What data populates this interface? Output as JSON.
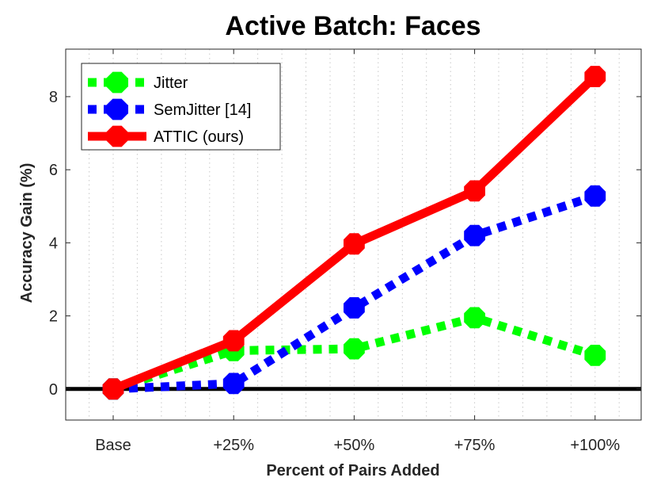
{
  "chart_data": {
    "type": "line",
    "title": "Active Batch: Faces",
    "xlabel": "Percent of Pairs Added",
    "ylabel": "Accuracy Gain (%)",
    "categories": [
      "Base",
      "+25%",
      "+50%",
      "+75%",
      "+100%"
    ],
    "ylim": [
      -0.85,
      9.3
    ],
    "yticks": [
      0,
      2,
      4,
      6,
      8
    ],
    "grid": "minor dotted",
    "legend_position": "top-left",
    "series": [
      {
        "name": "Jitter",
        "color": "#00ff00",
        "style": "dotted",
        "values": [
          0,
          1.05,
          1.1,
          1.95,
          0.92
        ]
      },
      {
        "name": "SemJitter [14]",
        "color": "#0000ff",
        "style": "dotted",
        "values": [
          0,
          0.15,
          2.22,
          4.2,
          5.28
        ]
      },
      {
        "name": "ATTIC (ours)",
        "color": "#ff0000",
        "style": "solid",
        "values": [
          0,
          1.32,
          3.97,
          5.42,
          8.55
        ]
      }
    ]
  }
}
